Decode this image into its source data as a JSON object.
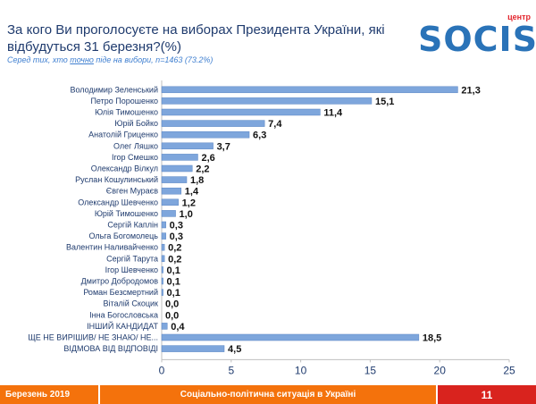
{
  "header": {
    "title": "За кого Ви проголосуєте на виборах Президента України, які відбудуться 31 березня?(%)",
    "subtitle_prefix": "Серед тих, хто ",
    "subtitle_underlined": "точно",
    "subtitle_suffix": " піде на вибори, n=1463 (73.2%)"
  },
  "logo": {
    "small_text": "центр",
    "brand": "SOCIS"
  },
  "colors": {
    "bar": "#7ea6dc",
    "bar_edge": "#5b86c4",
    "text": "#1f3b6e",
    "footer_orange": "#f4720c",
    "footer_red": "#d9231e"
  },
  "chart_data": {
    "type": "bar",
    "orientation": "horizontal",
    "categories": [
      "Володимир Зеленський",
      "Петро Порошенко",
      "Юлія Тимошенко",
      "Юрій Бойко",
      "Анатолій Гриценко",
      "Олег Ляшко",
      "Ігор Смешко",
      "Олександр Вілкул",
      "Руслан Кошулинський",
      "Євген Мураєв",
      "Олександр Шевченко",
      "Юрій Тимошенко",
      "Сергій Каплін",
      "Ольга Богомолець",
      "Валентин Наливайченко",
      "Сергій Тарута",
      "Ігор Шевченко",
      "Дмитро Добродомов",
      "Роман Безсмертний",
      "Віталій Скоцик",
      "Інна Богословська",
      "ІНШИЙ КАНДИДАТ",
      "ЩЕ НЕ ВИРІШИВ/ НЕ ЗНАЮ/ НЕ...",
      "ВІДМОВА ВІД ВІДПОВІДІ"
    ],
    "values": [
      21.3,
      15.1,
      11.4,
      7.4,
      6.3,
      3.7,
      2.6,
      2.2,
      1.8,
      1.4,
      1.2,
      1.0,
      0.3,
      0.3,
      0.2,
      0.2,
      0.1,
      0.1,
      0.1,
      0.0,
      0.0,
      0.4,
      18.5,
      4.5
    ],
    "value_labels": [
      "21,3",
      "15,1",
      "11,4",
      "7,4",
      "6,3",
      "3,7",
      "2,6",
      "2,2",
      "1,8",
      "1,4",
      "1,2",
      "1,0",
      "0,3",
      "0,3",
      "0,2",
      "0,2",
      "0,1",
      "0,1",
      "0,1",
      "0,0",
      "0,0",
      "0,4",
      "18,5",
      "4,5"
    ],
    "xlim": [
      0,
      25
    ],
    "x_ticks": [
      0,
      5,
      10,
      15,
      20,
      25
    ],
    "grid": false
  },
  "footer": {
    "left": "Березень 2019",
    "center": "Соціально-політична ситуація в Україні",
    "page": "11"
  }
}
